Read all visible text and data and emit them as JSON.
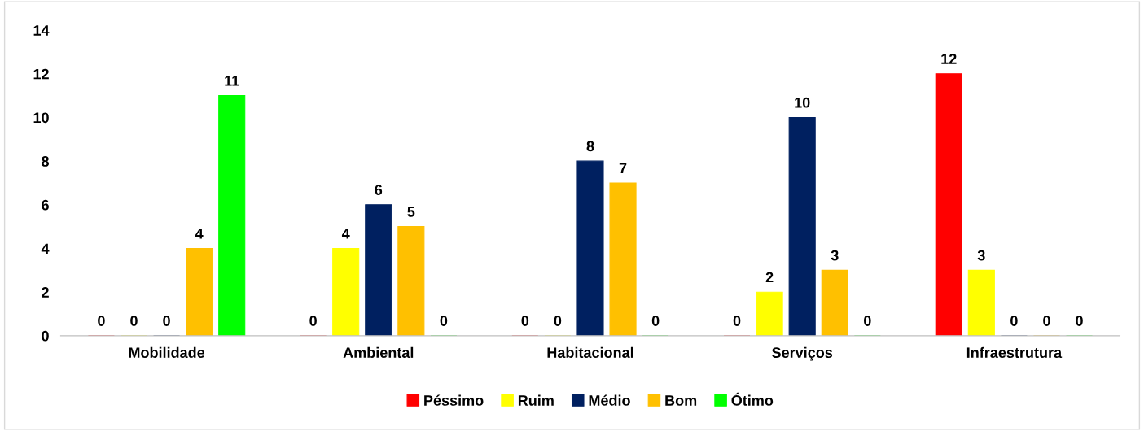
{
  "chart_data": {
    "type": "bar",
    "categories": [
      "Mobilidade",
      "Ambiental",
      "Habitacional",
      "Serviços",
      "Infraestrutura"
    ],
    "series": [
      {
        "name": "Péssimo",
        "color": "#ff0000",
        "values": [
          0,
          0,
          0,
          0,
          12
        ]
      },
      {
        "name": "Ruim",
        "color": "#ffff00",
        "values": [
          0,
          4,
          0,
          2,
          3
        ]
      },
      {
        "name": "Médio",
        "color": "#002060",
        "values": [
          0,
          6,
          8,
          10,
          0
        ]
      },
      {
        "name": "Bom",
        "color": "#ffc000",
        "values": [
          4,
          5,
          7,
          3,
          0
        ]
      },
      {
        "name": "Ótimo",
        "color": "#00ff00",
        "values": [
          11,
          0,
          0,
          0,
          0
        ]
      }
    ],
    "ylim": [
      0,
      14
    ],
    "yticks": [
      0,
      2,
      4,
      6,
      8,
      10,
      12,
      14
    ],
    "data_labels": true,
    "grid": false,
    "legend": "bottom"
  }
}
